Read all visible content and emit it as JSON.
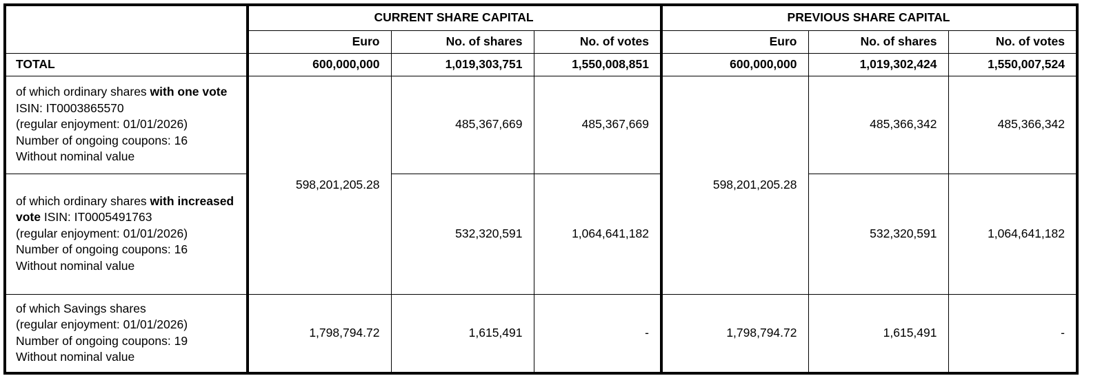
{
  "header": {
    "current": "CURRENT SHARE CAPITAL",
    "previous": "PREVIOUS SHARE CAPITAL",
    "cols": [
      "Euro",
      "No. of shares",
      "No. of votes"
    ]
  },
  "total": {
    "label": "TOTAL",
    "current": {
      "euro": "600,000,000",
      "shares": "1,019,303,751",
      "votes": "1,550,008,851"
    },
    "previous": {
      "euro": "600,000,000",
      "shares": "1,019,302,424",
      "votes": "1,550,007,524"
    }
  },
  "ordinary_euro": {
    "current": "598,201,205.28",
    "previous": "598,201,205.28"
  },
  "rows": [
    {
      "pre": "of which ordinary shares ",
      "bold": "with one vote",
      "post": " ISIN: IT0003865570",
      "enjoyment": "(regular enjoyment: 01/01/2026)",
      "coupons": "Number of ongoing coupons: 16",
      "nominal": "Without nominal value",
      "current": {
        "shares": "485,367,669",
        "votes": "485,367,669"
      },
      "previous": {
        "shares": "485,366,342",
        "votes": "485,366,342"
      }
    },
    {
      "pre": "of which ordinary shares ",
      "bold": "with increased vote",
      "post": " ISIN: IT0005491763",
      "enjoyment": "(regular enjoyment: 01/01/2026)",
      "coupons": "Number of ongoing coupons: 16",
      "nominal": "Without nominal value",
      "current": {
        "shares": "532,320,591",
        "votes": "1,064,641,182"
      },
      "previous": {
        "shares": "532,320,591",
        "votes": "1,064,641,182"
      }
    },
    {
      "pre": "of which Savings shares",
      "enjoyment": "(regular enjoyment: 01/01/2026)",
      "coupons": "Number of ongoing coupons: 19",
      "nominal": "Without nominal value",
      "current": {
        "euro": "1,798,794.72",
        "shares": "1,615,491",
        "votes": "-"
      },
      "previous": {
        "euro": "1,798,794.72",
        "shares": "1,615,491",
        "votes": "-"
      }
    }
  ]
}
